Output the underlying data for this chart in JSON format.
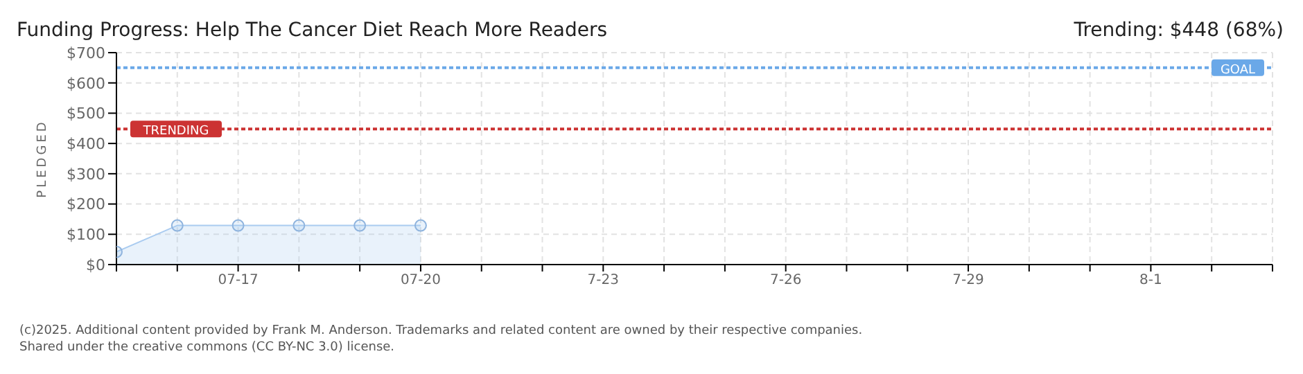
{
  "chart_data": {
    "type": "area",
    "title": "Funding Progress: Help The Cancer Diet Reach More Readers",
    "subtitle": "Trending: $448 (68%)",
    "ylabel": "PLEDGED",
    "categories": [
      null,
      null,
      "07-17",
      null,
      null,
      "07-20",
      null,
      null,
      "7-23",
      null,
      null,
      "7-26",
      null,
      null,
      "7-29",
      null,
      null,
      "8-1",
      null,
      null
    ],
    "series": [
      {
        "color": "#a9cbf0",
        "values": [
          42,
          129,
          129,
          129,
          129,
          129,
          null,
          null,
          null,
          null,
          null,
          null,
          null,
          null,
          null,
          null,
          null,
          null,
          null,
          null
        ]
      }
    ],
    "ylim": [
      0,
      700
    ],
    "yticks": [
      {
        "value": 0,
        "label": "$0"
      },
      {
        "value": 100,
        "label": "$100"
      },
      {
        "value": 200,
        "label": "$200"
      },
      {
        "value": 300,
        "label": "$300"
      },
      {
        "value": 400,
        "label": "$400"
      },
      {
        "value": 500,
        "label": "$500"
      },
      {
        "value": 600,
        "label": "$600"
      },
      {
        "value": 700,
        "label": "$700"
      }
    ],
    "grid": true,
    "legend": false,
    "marker": "circle",
    "ref_lines": [
      {
        "axis": "y",
        "value": 448,
        "label": "TRENDING",
        "color": "#cc3333",
        "line_style": "dotted"
      },
      {
        "axis": "y",
        "value": 650,
        "label": "GOAL",
        "color": "#6aa8e8",
        "line_style": "dotted"
      }
    ],
    "annotations": [
      "(c)2025. Additional content provided by Frank M. Anderson. Trademarks and related content are owned by their respective companies.",
      "Shared under the creative commons (CC BY-NC 3.0) license."
    ]
  }
}
